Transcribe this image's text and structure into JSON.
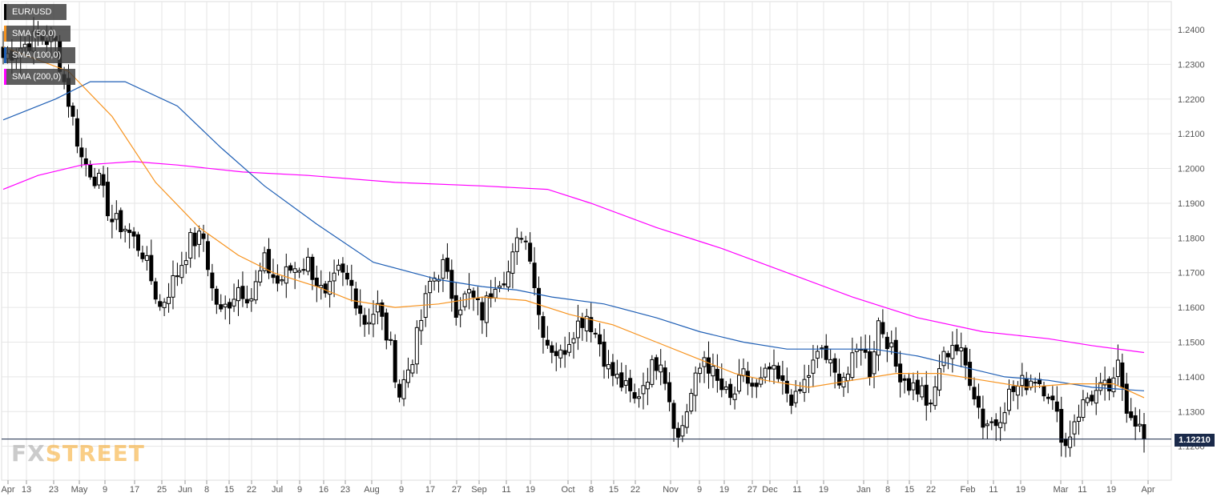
{
  "colors": {
    "grid": "#e6e6e6",
    "axis": "#dddddd",
    "label": "#555555",
    "candle": "#000000",
    "sma50": "#f7931e",
    "sma100": "#1f5fb5",
    "sma200": "#ff00ff",
    "price_line": "#1a2a4a"
  },
  "legend": [
    {
      "label": "EUR/USD",
      "color": "#000000"
    },
    {
      "label": "SMA (50,0)",
      "color": "#f7931e"
    },
    {
      "label": "SMA (100,0)",
      "color": "#1f5fb5"
    },
    {
      "label": "SMA (200,0)",
      "color": "#ff00ff"
    }
  ],
  "logo": {
    "part1": "FX",
    "part2": "STREET"
  },
  "current_price": "1.12210",
  "chart_data": {
    "type": "candlestick",
    "symbol": "EUR/USD",
    "timeframe": "daily",
    "ylim": [
      1.11,
      1.25
    ],
    "y_ticks": [
      "1.2400",
      "1.2300",
      "1.2200",
      "1.2100",
      "1.2000",
      "1.1900",
      "1.1800",
      "1.1700",
      "1.1600",
      "1.1500",
      "1.1400",
      "1.1300",
      "1.1200"
    ],
    "x_ticks": [
      "Apr",
      "13",
      "23",
      "May",
      "9",
      "17",
      "25",
      "Jun",
      "8",
      "15",
      "22",
      "Jul",
      "9",
      "16",
      "23",
      "Aug",
      "9",
      "17",
      "27",
      "Sep",
      "11",
      "19",
      "Oct",
      "8",
      "15",
      "22",
      "Nov",
      "9",
      "19",
      "27",
      "Dec",
      "11",
      "19",
      "Jan",
      "8",
      "15",
      "22",
      "Feb",
      "11",
      "19",
      "Mar",
      "11",
      "19",
      "Apr"
    ],
    "last_price": 1.1221,
    "anchors": [
      [
        0,
        1.232
      ],
      [
        8,
        1.238
      ],
      [
        12,
        1.236
      ],
      [
        14,
        1.225
      ],
      [
        18,
        1.203
      ],
      [
        22,
        1.196
      ],
      [
        25,
        1.185
      ],
      [
        28,
        1.183
      ],
      [
        32,
        1.176
      ],
      [
        36,
        1.16
      ],
      [
        40,
        1.17
      ],
      [
        43,
        1.179
      ],
      [
        46,
        1.18
      ],
      [
        48,
        1.165
      ],
      [
        50,
        1.158
      ],
      [
        54,
        1.166
      ],
      [
        57,
        1.163
      ],
      [
        60,
        1.173
      ],
      [
        63,
        1.167
      ],
      [
        66,
        1.171
      ],
      [
        70,
        1.173
      ],
      [
        74,
        1.162
      ],
      [
        77,
        1.17
      ],
      [
        80,
        1.166
      ],
      [
        83,
        1.156
      ],
      [
        86,
        1.16
      ],
      [
        89,
        1.148
      ],
      [
        91,
        1.135
      ],
      [
        94,
        1.146
      ],
      [
        98,
        1.167
      ],
      [
        101,
        1.172
      ],
      [
        104,
        1.16
      ],
      [
        107,
        1.164
      ],
      [
        110,
        1.158
      ],
      [
        113,
        1.168
      ],
      [
        116,
        1.17
      ],
      [
        119,
        1.182
      ],
      [
        121,
        1.176
      ],
      [
        123,
        1.158
      ],
      [
        125,
        1.15
      ],
      [
        128,
        1.146
      ],
      [
        131,
        1.154
      ],
      [
        134,
        1.158
      ],
      [
        137,
        1.15
      ],
      [
        139,
        1.142
      ],
      [
        142,
        1.138
      ],
      [
        145,
        1.133
      ],
      [
        148,
        1.141
      ],
      [
        151,
        1.146
      ],
      [
        153,
        1.134
      ],
      [
        155,
        1.122
      ],
      [
        158,
        1.135
      ],
      [
        161,
        1.146
      ],
      [
        164,
        1.138
      ],
      [
        167,
        1.133
      ],
      [
        170,
        1.14
      ],
      [
        173,
        1.136
      ],
      [
        176,
        1.142
      ],
      [
        179,
        1.137
      ],
      [
        182,
        1.133
      ],
      [
        185,
        1.141
      ],
      [
        188,
        1.148
      ],
      [
        191,
        1.14
      ],
      [
        194,
        1.141
      ],
      [
        197,
        1.15
      ],
      [
        199,
        1.142
      ],
      [
        201,
        1.156
      ],
      [
        203,
        1.151
      ],
      [
        205,
        1.143
      ],
      [
        208,
        1.138
      ],
      [
        211,
        1.136
      ],
      [
        213,
        1.13
      ],
      [
        215,
        1.143
      ],
      [
        218,
        1.15
      ],
      [
        220,
        1.146
      ],
      [
        222,
        1.14
      ],
      [
        225,
        1.127
      ],
      [
        228,
        1.127
      ],
      [
        231,
        1.135
      ],
      [
        234,
        1.138
      ],
      [
        237,
        1.14
      ],
      [
        240,
        1.136
      ],
      [
        242,
        1.128
      ],
      [
        244,
        1.12
      ],
      [
        246,
        1.128
      ],
      [
        249,
        1.134
      ],
      [
        252,
        1.136
      ],
      [
        255,
        1.137
      ],
      [
        256,
        1.143
      ],
      [
        258,
        1.132
      ],
      [
        260,
        1.128
      ],
      [
        262,
        1.122
      ]
    ],
    "sma50": [
      [
        0,
        1.235
      ],
      [
        15,
        1.228
      ],
      [
        25,
        1.215
      ],
      [
        35,
        1.196
      ],
      [
        45,
        1.183
      ],
      [
        54,
        1.175
      ],
      [
        62,
        1.17
      ],
      [
        72,
        1.166
      ],
      [
        80,
        1.162
      ],
      [
        90,
        1.16
      ],
      [
        100,
        1.161
      ],
      [
        110,
        1.163
      ],
      [
        120,
        1.162
      ],
      [
        130,
        1.158
      ],
      [
        140,
        1.155
      ],
      [
        150,
        1.15
      ],
      [
        160,
        1.145
      ],
      [
        168,
        1.141
      ],
      [
        175,
        1.139
      ],
      [
        185,
        1.137
      ],
      [
        195,
        1.139
      ],
      [
        205,
        1.141
      ],
      [
        215,
        1.141
      ],
      [
        225,
        1.139
      ],
      [
        235,
        1.137
      ],
      [
        245,
        1.138
      ],
      [
        255,
        1.138
      ],
      [
        262,
        1.134
      ]
    ],
    "sma100": [
      [
        0,
        1.214
      ],
      [
        12,
        1.22
      ],
      [
        20,
        1.225
      ],
      [
        28,
        1.225
      ],
      [
        40,
        1.218
      ],
      [
        50,
        1.206
      ],
      [
        60,
        1.195
      ],
      [
        72,
        1.184
      ],
      [
        85,
        1.173
      ],
      [
        100,
        1.168
      ],
      [
        110,
        1.166
      ],
      [
        118,
        1.165
      ],
      [
        126,
        1.163
      ],
      [
        138,
        1.161
      ],
      [
        150,
        1.157
      ],
      [
        160,
        1.153
      ],
      [
        170,
        1.15
      ],
      [
        180,
        1.148
      ],
      [
        190,
        1.148
      ],
      [
        200,
        1.148
      ],
      [
        210,
        1.146
      ],
      [
        220,
        1.143
      ],
      [
        230,
        1.14
      ],
      [
        240,
        1.139
      ],
      [
        250,
        1.137
      ],
      [
        262,
        1.136
      ]
    ],
    "sma200": [
      [
        0,
        1.194
      ],
      [
        8,
        1.198
      ],
      [
        18,
        1.201
      ],
      [
        30,
        1.202
      ],
      [
        40,
        1.201
      ],
      [
        55,
        1.199
      ],
      [
        70,
        1.198
      ],
      [
        90,
        1.196
      ],
      [
        110,
        1.195
      ],
      [
        125,
        1.194
      ],
      [
        135,
        1.19
      ],
      [
        150,
        1.183
      ],
      [
        165,
        1.177
      ],
      [
        180,
        1.17
      ],
      [
        195,
        1.163
      ],
      [
        210,
        1.157
      ],
      [
        225,
        1.153
      ],
      [
        240,
        1.151
      ],
      [
        250,
        1.149
      ],
      [
        262,
        1.147
      ]
    ]
  }
}
